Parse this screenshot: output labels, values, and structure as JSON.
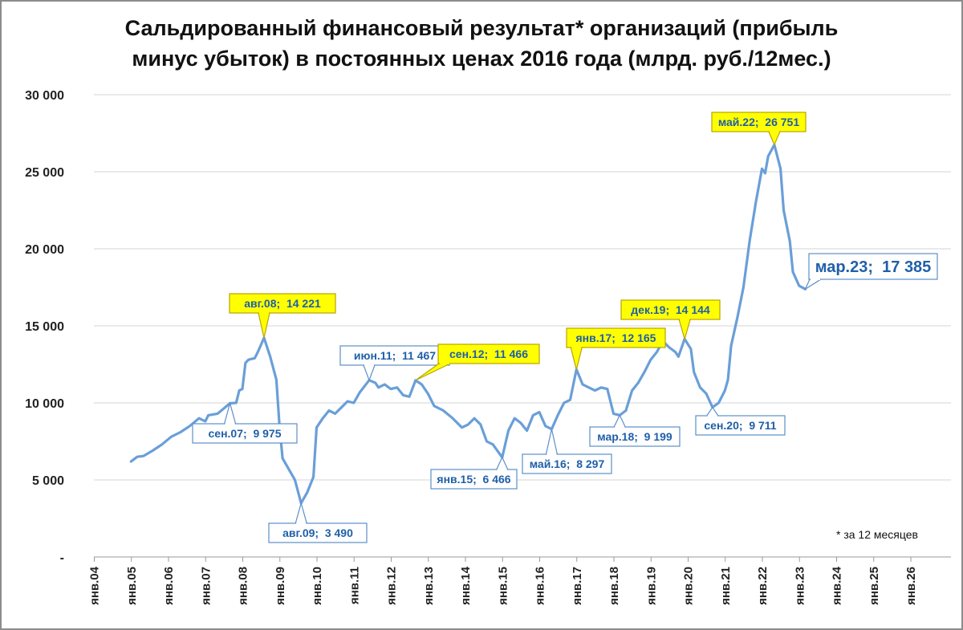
{
  "title": {
    "line1": "Сальдированный финансовый результат* организаций (прибыль",
    "line2": "минус убыток) в постоянных ценах 2016 года (млрд. руб./12мес.)"
  },
  "footnote": "* за 12 месяцев",
  "chart_data": {
    "type": "line",
    "title": "Сальдированный финансовый результат* организаций (прибыль минус убыток) в постоянных ценах 2016 года (млрд. руб./12мес.)",
    "ylim": [
      0,
      30000
    ],
    "y_ticks": [
      {
        "value": 0,
        "label": "-"
      },
      {
        "value": 5000,
        "label": "5 000"
      },
      {
        "value": 10000,
        "label": "10 000"
      },
      {
        "value": 15000,
        "label": "15 000"
      },
      {
        "value": 20000,
        "label": "20 000"
      },
      {
        "value": 25000,
        "label": "25 000"
      },
      {
        "value": 30000,
        "label": "30 000"
      }
    ],
    "x_range": [
      "2004-01",
      "2026-12"
    ],
    "x_ticks": [
      "янв.04",
      "янв.05",
      "янв.06",
      "янв.07",
      "янв.08",
      "янв.09",
      "янв.10",
      "янв.11",
      "янв.12",
      "янв.13",
      "янв.14",
      "янв.15",
      "янв.16",
      "янв.17",
      "янв.18",
      "янв.19",
      "янв.20",
      "янв.21",
      "янв.22",
      "янв.23",
      "янв.24",
      "янв.25",
      "янв.26"
    ],
    "grid": "horizontal",
    "line_color": "#6a9fd8",
    "series": [
      {
        "points": [
          [
            "2005-01",
            6200
          ],
          [
            "2005-03",
            6500
          ],
          [
            "2005-05",
            6550
          ],
          [
            "2005-08",
            6900
          ],
          [
            "2005-11",
            7300
          ],
          [
            "2006-02",
            7800
          ],
          [
            "2006-05",
            8100
          ],
          [
            "2006-08",
            8500
          ],
          [
            "2006-11",
            9000
          ],
          [
            "2007-01",
            8800
          ],
          [
            "2007-02",
            9200
          ],
          [
            "2007-05",
            9300
          ],
          [
            "2007-09",
            9975
          ],
          [
            "2007-11",
            10000
          ],
          [
            "2007-12",
            10800
          ],
          [
            "2008-01",
            10900
          ],
          [
            "2008-02",
            12600
          ],
          [
            "2008-03",
            12800
          ],
          [
            "2008-05",
            12900
          ],
          [
            "2008-06",
            13300
          ],
          [
            "2008-08",
            14221
          ],
          [
            "2008-10",
            13000
          ],
          [
            "2008-12",
            11500
          ],
          [
            "2009-01",
            8500
          ],
          [
            "2009-02",
            6400
          ],
          [
            "2009-04",
            5700
          ],
          [
            "2009-06",
            5000
          ],
          [
            "2009-08",
            3490
          ],
          [
            "2009-10",
            4200
          ],
          [
            "2009-12",
            5200
          ],
          [
            "2010-01",
            8400
          ],
          [
            "2010-03",
            9000
          ],
          [
            "2010-05",
            9500
          ],
          [
            "2010-07",
            9300
          ],
          [
            "2010-09",
            9700
          ],
          [
            "2010-11",
            10100
          ],
          [
            "2011-01",
            10000
          ],
          [
            "2011-03",
            10700
          ],
          [
            "2011-06",
            11467
          ],
          [
            "2011-08",
            11300
          ],
          [
            "2011-09",
            11000
          ],
          [
            "2011-11",
            11200
          ],
          [
            "2012-01",
            10900
          ],
          [
            "2012-03",
            11000
          ],
          [
            "2012-05",
            10500
          ],
          [
            "2012-07",
            10400
          ],
          [
            "2012-09",
            11466
          ],
          [
            "2012-11",
            11200
          ],
          [
            "2013-01",
            10600
          ],
          [
            "2013-03",
            9800
          ],
          [
            "2013-06",
            9500
          ],
          [
            "2013-09",
            9000
          ],
          [
            "2013-12",
            8400
          ],
          [
            "2014-02",
            8600
          ],
          [
            "2014-04",
            9000
          ],
          [
            "2014-06",
            8600
          ],
          [
            "2014-08",
            7500
          ],
          [
            "2014-10",
            7300
          ],
          [
            "2015-01",
            6466
          ],
          [
            "2015-03",
            8200
          ],
          [
            "2015-05",
            9000
          ],
          [
            "2015-07",
            8700
          ],
          [
            "2015-09",
            8200
          ],
          [
            "2015-11",
            9200
          ],
          [
            "2016-01",
            9400
          ],
          [
            "2016-03",
            8500
          ],
          [
            "2016-05",
            8297
          ],
          [
            "2016-07",
            9200
          ],
          [
            "2016-09",
            10000
          ],
          [
            "2016-11",
            10200
          ],
          [
            "2017-01",
            12165
          ],
          [
            "2017-03",
            11200
          ],
          [
            "2017-05",
            11000
          ],
          [
            "2017-07",
            10800
          ],
          [
            "2017-09",
            11000
          ],
          [
            "2017-11",
            10900
          ],
          [
            "2018-01",
            9300
          ],
          [
            "2018-03",
            9199
          ],
          [
            "2018-05",
            9500
          ],
          [
            "2018-07",
            10800
          ],
          [
            "2018-09",
            11300
          ],
          [
            "2018-11",
            12000
          ],
          [
            "2019-01",
            12800
          ],
          [
            "2019-03",
            13300
          ],
          [
            "2019-05",
            14000
          ],
          [
            "2019-07",
            13600
          ],
          [
            "2019-09",
            13300
          ],
          [
            "2019-10",
            13000
          ],
          [
            "2019-12",
            14144
          ],
          [
            "2020-02",
            13500
          ],
          [
            "2020-03",
            12000
          ],
          [
            "2020-05",
            11000
          ],
          [
            "2020-07",
            10600
          ],
          [
            "2020-09",
            9711
          ],
          [
            "2020-11",
            10000
          ],
          [
            "2021-01",
            10800
          ],
          [
            "2021-02",
            11500
          ],
          [
            "2021-03",
            13700
          ],
          [
            "2021-05",
            15500
          ],
          [
            "2021-07",
            17500
          ],
          [
            "2021-09",
            20500
          ],
          [
            "2021-11",
            23000
          ],
          [
            "2022-01",
            25200
          ],
          [
            "2022-02",
            24900
          ],
          [
            "2022-03",
            26000
          ],
          [
            "2022-05",
            26751
          ],
          [
            "2022-07",
            25200
          ],
          [
            "2022-08",
            22500
          ],
          [
            "2022-10",
            20500
          ],
          [
            "2022-11",
            18500
          ],
          [
            "2023-01",
            17600
          ],
          [
            "2023-03",
            17385
          ]
        ]
      }
    ],
    "annotations": [
      {
        "label": "сен.07;  9 975",
        "x": "2007-09",
        "y": 9975,
        "highlight": false
      },
      {
        "label": "авг.08;  14 221",
        "x": "2008-08",
        "y": 14221,
        "highlight": true
      },
      {
        "label": "авг.09;  3 490",
        "x": "2009-08",
        "y": 3490,
        "highlight": false
      },
      {
        "label": "июн.11;  11 467",
        "x": "2011-06",
        "y": 11467,
        "highlight": false
      },
      {
        "label": "сен.12;  11 466",
        "x": "2012-09",
        "y": 11466,
        "highlight": true
      },
      {
        "label": "янв.15;  6 466",
        "x": "2015-01",
        "y": 6466,
        "highlight": false
      },
      {
        "label": "май.16;  8 297",
        "x": "2016-05",
        "y": 8297,
        "highlight": false
      },
      {
        "label": "янв.17;  12 165",
        "x": "2017-01",
        "y": 12165,
        "highlight": true
      },
      {
        "label": "мар.18;  9 199",
        "x": "2018-03",
        "y": 9199,
        "highlight": false
      },
      {
        "label": "дек.19;  14 144",
        "x": "2019-12",
        "y": 14144,
        "highlight": true
      },
      {
        "label": "сен.20;  9 711",
        "x": "2020-09",
        "y": 9711,
        "highlight": false
      },
      {
        "label": "май.22;  26 751",
        "x": "2022-05",
        "y": 26751,
        "highlight": true
      },
      {
        "label": "мар.23;  17 385",
        "x": "2023-03",
        "y": 17385,
        "highlight": false,
        "large": true
      }
    ]
  }
}
